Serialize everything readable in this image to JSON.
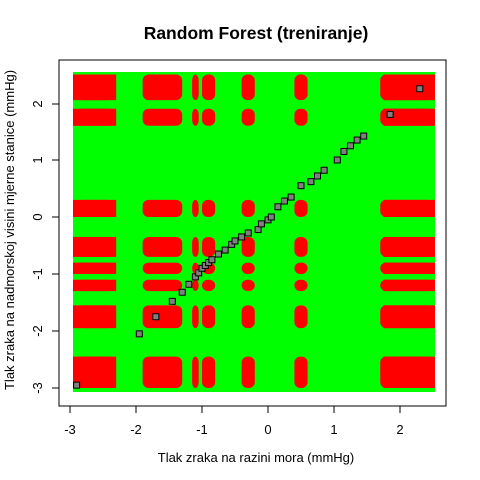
{
  "chart_data": {
    "type": "scatter",
    "title": "Random Forest (treniranje)",
    "xlabel": "Tlak zraka na razini mora (mmHg)",
    "ylabel": "Tlak zraka na nadmorskoj visini mjerne stanice (mmHg)",
    "xlim": [
      -3.0,
      2.6
    ],
    "ylim": [
      -3.05,
      2.6
    ],
    "xticks": [
      -3,
      -2,
      -1,
      0,
      1,
      2
    ],
    "yticks": [
      -3,
      -2,
      -1,
      0,
      1,
      2
    ],
    "xtick_labels": [
      "-3",
      "-2",
      "-1",
      "0",
      "1",
      "2"
    ],
    "ytick_labels": [
      "-3",
      "-2",
      "-1",
      "0",
      "1",
      "2"
    ],
    "background_class_color": "#00ff00",
    "region_class_color": "#ff0000",
    "point_fill": "#808080",
    "point_edge": "#000000",
    "region_x_bands": [
      [
        -2.9,
        -2.35
      ],
      [
        -1.9,
        -1.3
      ],
      [
        -1.15,
        -1.05
      ],
      [
        -1.0,
        -0.8
      ],
      [
        -0.4,
        -0.2
      ],
      [
        0.4,
        0.6
      ],
      [
        1.7,
        2.5
      ]
    ],
    "region_y_bands": [
      [
        2.5,
        2.05
      ],
      [
        1.9,
        1.6
      ],
      [
        0.3,
        0.0
      ],
      [
        -0.35,
        -0.7
      ],
      [
        -0.8,
        -1.0
      ],
      [
        -1.1,
        -1.3
      ],
      [
        -1.55,
        -1.95
      ],
      [
        -2.45,
        -3.0
      ]
    ],
    "points": [
      [
        -2.9,
        -2.95
      ],
      [
        -1.95,
        -2.05
      ],
      [
        -1.7,
        -1.75
      ],
      [
        -1.45,
        -1.48
      ],
      [
        -1.3,
        -1.32
      ],
      [
        -1.2,
        -1.18
      ],
      [
        -1.1,
        -1.05
      ],
      [
        -1.05,
        -0.98
      ],
      [
        -1.0,
        -0.9
      ],
      [
        -0.95,
        -0.85
      ],
      [
        -0.9,
        -0.8
      ],
      [
        -0.85,
        -0.75
      ],
      [
        -0.75,
        -0.65
      ],
      [
        -0.65,
        -0.58
      ],
      [
        -0.55,
        -0.48
      ],
      [
        -0.5,
        -0.42
      ],
      [
        -0.4,
        -0.35
      ],
      [
        -0.3,
        -0.28
      ],
      [
        -0.15,
        -0.22
      ],
      [
        -0.1,
        -0.12
      ],
      [
        0.0,
        -0.05
      ],
      [
        0.05,
        0.0
      ],
      [
        0.15,
        0.18
      ],
      [
        0.25,
        0.28
      ],
      [
        0.35,
        0.35
      ],
      [
        0.5,
        0.55
      ],
      [
        0.65,
        0.62
      ],
      [
        0.75,
        0.72
      ],
      [
        0.85,
        0.82
      ],
      [
        1.05,
        1.0
      ],
      [
        1.15,
        1.15
      ],
      [
        1.25,
        1.25
      ],
      [
        1.35,
        1.35
      ],
      [
        1.45,
        1.42
      ],
      [
        1.85,
        1.8
      ],
      [
        2.3,
        2.25
      ]
    ]
  }
}
